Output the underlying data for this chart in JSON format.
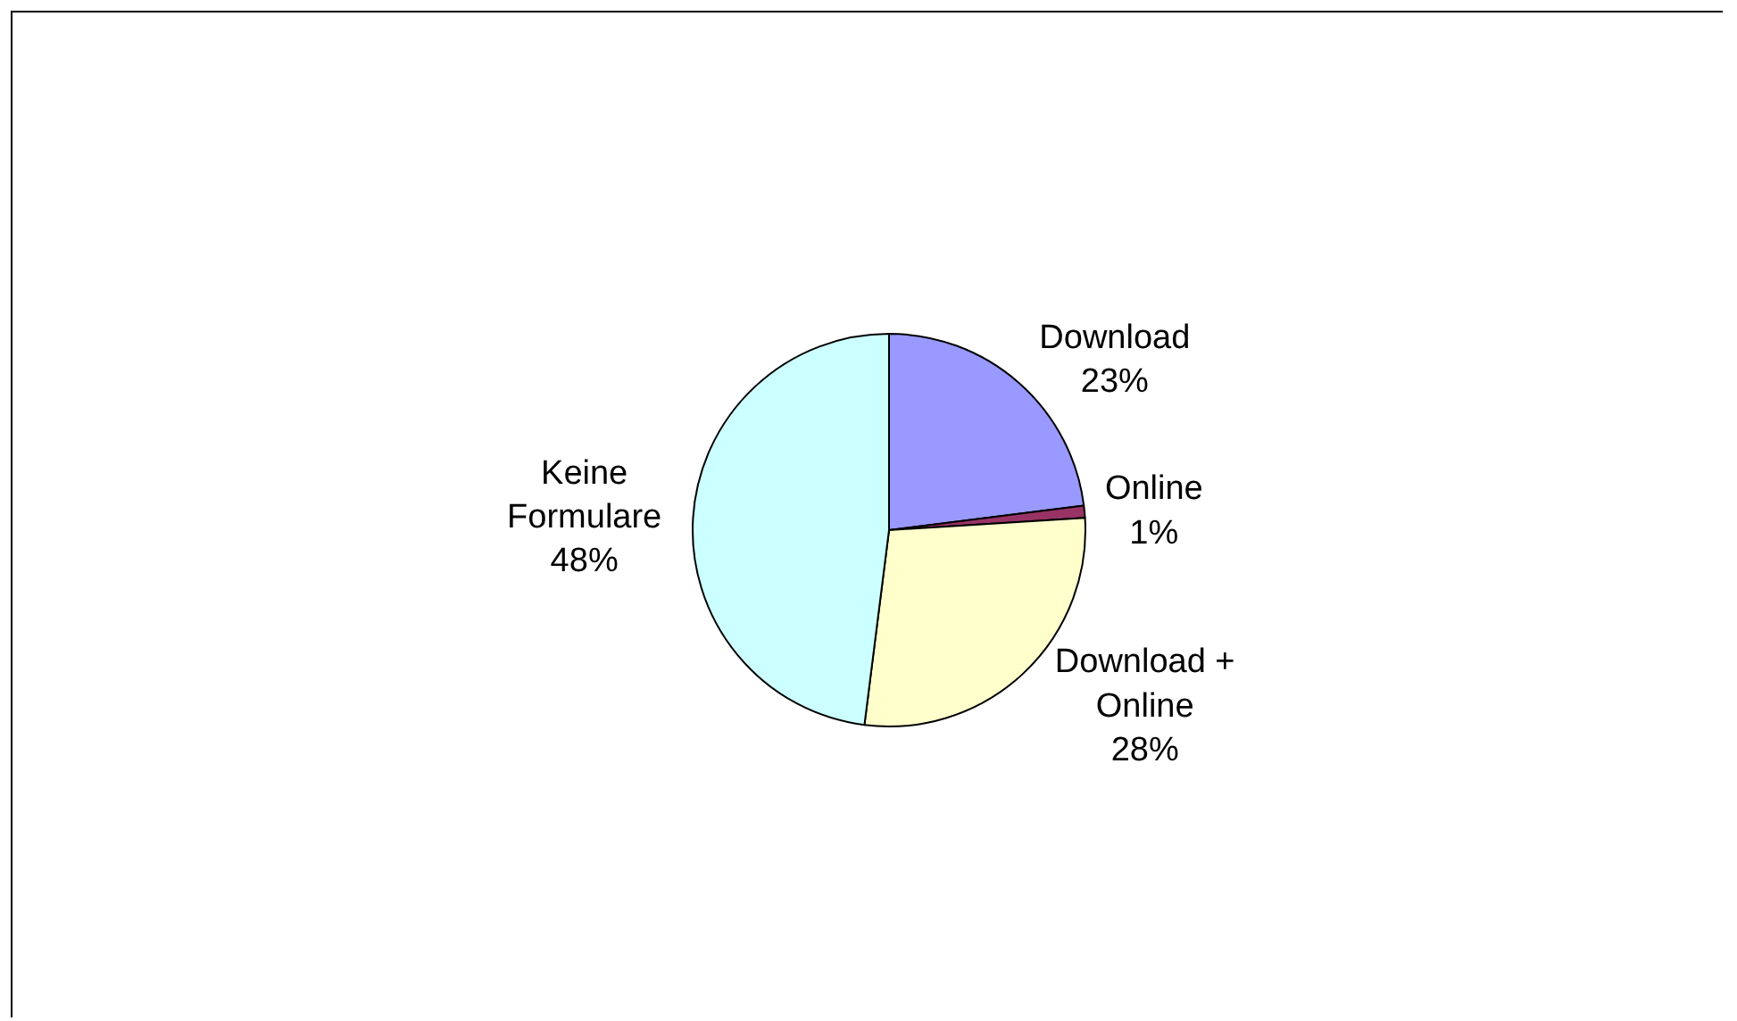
{
  "chart_data": {
    "type": "pie",
    "categories": [
      "Download",
      "Online",
      "Download + Online",
      "Keine Formulare"
    ],
    "values": [
      23,
      1,
      28,
      48
    ],
    "value_labels": [
      "23%",
      "1%",
      "28%",
      "48%"
    ],
    "colors": [
      "#9999ff",
      "#993366",
      "#ffffcc",
      "#ccffff"
    ],
    "legend": false
  }
}
